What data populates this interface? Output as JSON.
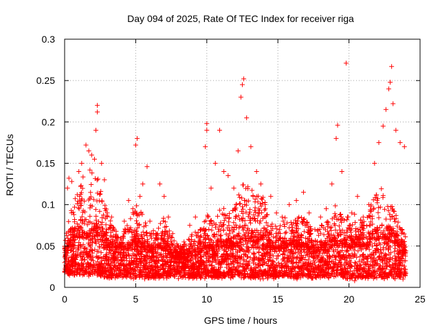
{
  "chart_data": {
    "type": "scatter",
    "title": "Day 094 of 2025, Rate Of TEC Index for receiver riga",
    "xlabel": "GPS time / hours",
    "ylabel": "ROTI / TECUs",
    "xlim": [
      0,
      25
    ],
    "ylim": [
      0,
      0.3
    ],
    "x_ticks": [
      0,
      5,
      10,
      15,
      20,
      25
    ],
    "x_tick_labels": [
      "0",
      "5",
      "10",
      "15",
      "20",
      "25"
    ],
    "y_ticks": [
      0,
      0.05,
      0.1,
      0.15,
      0.2,
      0.25,
      0.3
    ],
    "y_tick_labels": [
      "0",
      "0.05",
      "0.1",
      "0.15",
      "0.2",
      "0.25",
      "0.3"
    ],
    "grid": true,
    "marker": "plus",
    "color": "#ff0000",
    "series": [
      {
        "points": [
          [
            0.0,
            0.03
          ],
          [
            0.2,
            0.12
          ],
          [
            0.3,
            0.132
          ],
          [
            0.5,
            0.128
          ],
          [
            0.7,
            0.082
          ],
          [
            0.9,
            0.06
          ],
          [
            1.0,
            0.14
          ],
          [
            1.2,
            0.15
          ],
          [
            1.5,
            0.172
          ],
          [
            1.7,
            0.165
          ],
          [
            1.9,
            0.16
          ],
          [
            2.1,
            0.155
          ],
          [
            2.2,
            0.19
          ],
          [
            2.3,
            0.212
          ],
          [
            2.3,
            0.22
          ],
          [
            2.6,
            0.15
          ],
          [
            2.8,
            0.13
          ],
          [
            3.0,
            0.09
          ],
          [
            3.3,
            0.085
          ],
          [
            3.6,
            0.06
          ],
          [
            3.9,
            0.052
          ],
          [
            4.2,
            0.08
          ],
          [
            4.5,
            0.105
          ],
          [
            4.8,
            0.095
          ],
          [
            5.0,
            0.172
          ],
          [
            5.1,
            0.18
          ],
          [
            5.3,
            0.11
          ],
          [
            5.5,
            0.125
          ],
          [
            5.8,
            0.146
          ],
          [
            6.0,
            0.08
          ],
          [
            6.4,
            0.06
          ],
          [
            6.7,
            0.125
          ],
          [
            7.0,
            0.11
          ],
          [
            7.3,
            0.085
          ],
          [
            7.6,
            0.065
          ],
          [
            8.0,
            0.04
          ],
          [
            8.4,
            0.055
          ],
          [
            8.8,
            0.075
          ],
          [
            9.2,
            0.085
          ],
          [
            9.6,
            0.07
          ],
          [
            9.9,
            0.17
          ],
          [
            10.0,
            0.19
          ],
          [
            10.0,
            0.198
          ],
          [
            10.3,
            0.12
          ],
          [
            10.6,
            0.15
          ],
          [
            10.9,
            0.19
          ],
          [
            11.2,
            0.14
          ],
          [
            11.5,
            0.135
          ],
          [
            11.9,
            0.12
          ],
          [
            12.2,
            0.165
          ],
          [
            12.4,
            0.23
          ],
          [
            12.5,
            0.245
          ],
          [
            12.6,
            0.252
          ],
          [
            12.8,
            0.205
          ],
          [
            13.1,
            0.17
          ],
          [
            13.5,
            0.14
          ],
          [
            13.8,
            0.125
          ],
          [
            14.1,
            0.1
          ],
          [
            14.5,
            0.11
          ],
          [
            14.9,
            0.09
          ],
          [
            15.3,
            0.085
          ],
          [
            15.8,
            0.1
          ],
          [
            16.3,
            0.105
          ],
          [
            16.8,
            0.115
          ],
          [
            17.2,
            0.09
          ],
          [
            17.6,
            0.07
          ],
          [
            18.0,
            0.085
          ],
          [
            18.4,
            0.095
          ],
          [
            18.8,
            0.125
          ],
          [
            19.1,
            0.18
          ],
          [
            19.2,
            0.196
          ],
          [
            19.5,
            0.14
          ],
          [
            19.8,
            0.271
          ],
          [
            20.2,
            0.09
          ],
          [
            20.6,
            0.11
          ],
          [
            21.0,
            0.085
          ],
          [
            21.4,
            0.1
          ],
          [
            21.8,
            0.15
          ],
          [
            22.1,
            0.175
          ],
          [
            22.4,
            0.195
          ],
          [
            22.6,
            0.215
          ],
          [
            22.8,
            0.24
          ],
          [
            22.9,
            0.248
          ],
          [
            23.0,
            0.267
          ],
          [
            23.1,
            0.222
          ],
          [
            23.3,
            0.19
          ],
          [
            23.6,
            0.175
          ],
          [
            23.9,
            0.17
          ],
          [
            0.4,
            0.02
          ],
          [
            1.3,
            0.025
          ],
          [
            2.5,
            0.015
          ],
          [
            3.2,
            0.02
          ],
          [
            4.1,
            0.018
          ],
          [
            5.4,
            0.015
          ],
          [
            6.3,
            0.012
          ],
          [
            7.4,
            0.018
          ],
          [
            8.5,
            0.015
          ],
          [
            9.4,
            0.02
          ],
          [
            10.8,
            0.012
          ],
          [
            11.7,
            0.018
          ],
          [
            13.2,
            0.015
          ],
          [
            14.3,
            0.012
          ],
          [
            15.6,
            0.018
          ],
          [
            16.9,
            0.015
          ],
          [
            18.2,
            0.02
          ],
          [
            19.6,
            0.012
          ],
          [
            20.4,
            0.008
          ],
          [
            21.6,
            0.015
          ],
          [
            22.7,
            0.012
          ],
          [
            23.8,
            0.01
          ]
        ],
        "envelope": {
          "x": [
            0,
            0.5,
            1,
            1.5,
            2,
            2.5,
            3,
            3.5,
            4,
            4.5,
            5,
            5.5,
            6,
            6.5,
            7,
            7.5,
            8,
            8.5,
            9,
            9.5,
            10,
            10.5,
            11,
            11.5,
            12,
            12.5,
            13,
            13.5,
            14,
            14.5,
            15,
            15.5,
            16,
            16.5,
            17,
            17.5,
            18,
            18.5,
            19,
            19.5,
            20,
            20.5,
            21,
            21.5,
            22,
            22.5,
            23,
            23.5,
            24
          ],
          "upper": [
            0.055,
            0.1,
            0.12,
            0.15,
            0.14,
            0.13,
            0.09,
            0.07,
            0.065,
            0.08,
            0.1,
            0.09,
            0.065,
            0.075,
            0.09,
            0.065,
            0.05,
            0.055,
            0.065,
            0.07,
            0.09,
            0.08,
            0.1,
            0.095,
            0.1,
            0.13,
            0.12,
            0.12,
            0.11,
            0.08,
            0.075,
            0.085,
            0.085,
            0.09,
            0.085,
            0.065,
            0.075,
            0.08,
            0.1,
            0.09,
            0.085,
            0.095,
            0.08,
            0.1,
            0.12,
            0.13,
            0.1,
            0.085,
            0.06
          ],
          "core": [
            0.035,
            0.055,
            0.06,
            0.065,
            0.065,
            0.06,
            0.05,
            0.045,
            0.04,
            0.045,
            0.05,
            0.048,
            0.04,
            0.042,
            0.045,
            0.038,
            0.035,
            0.035,
            0.038,
            0.04,
            0.045,
            0.042,
            0.048,
            0.05,
            0.05,
            0.055,
            0.055,
            0.055,
            0.05,
            0.045,
            0.045,
            0.048,
            0.048,
            0.05,
            0.048,
            0.042,
            0.045,
            0.045,
            0.05,
            0.05,
            0.048,
            0.05,
            0.048,
            0.052,
            0.058,
            0.06,
            0.055,
            0.05,
            0.04
          ],
          "lower": [
            0.015,
            0.012,
            0.012,
            0.012,
            0.012,
            0.012,
            0.01,
            0.01,
            0.01,
            0.01,
            0.01,
            0.01,
            0.01,
            0.01,
            0.01,
            0.01,
            0.01,
            0.01,
            0.01,
            0.01,
            0.01,
            0.01,
            0.01,
            0.01,
            0.01,
            0.01,
            0.01,
            0.01,
            0.01,
            0.01,
            0.01,
            0.01,
            0.01,
            0.01,
            0.01,
            0.01,
            0.01,
            0.01,
            0.01,
            0.01,
            0.008,
            0.01,
            0.01,
            0.01,
            0.01,
            0.01,
            0.01,
            0.01,
            0.012
          ]
        }
      }
    ]
  }
}
